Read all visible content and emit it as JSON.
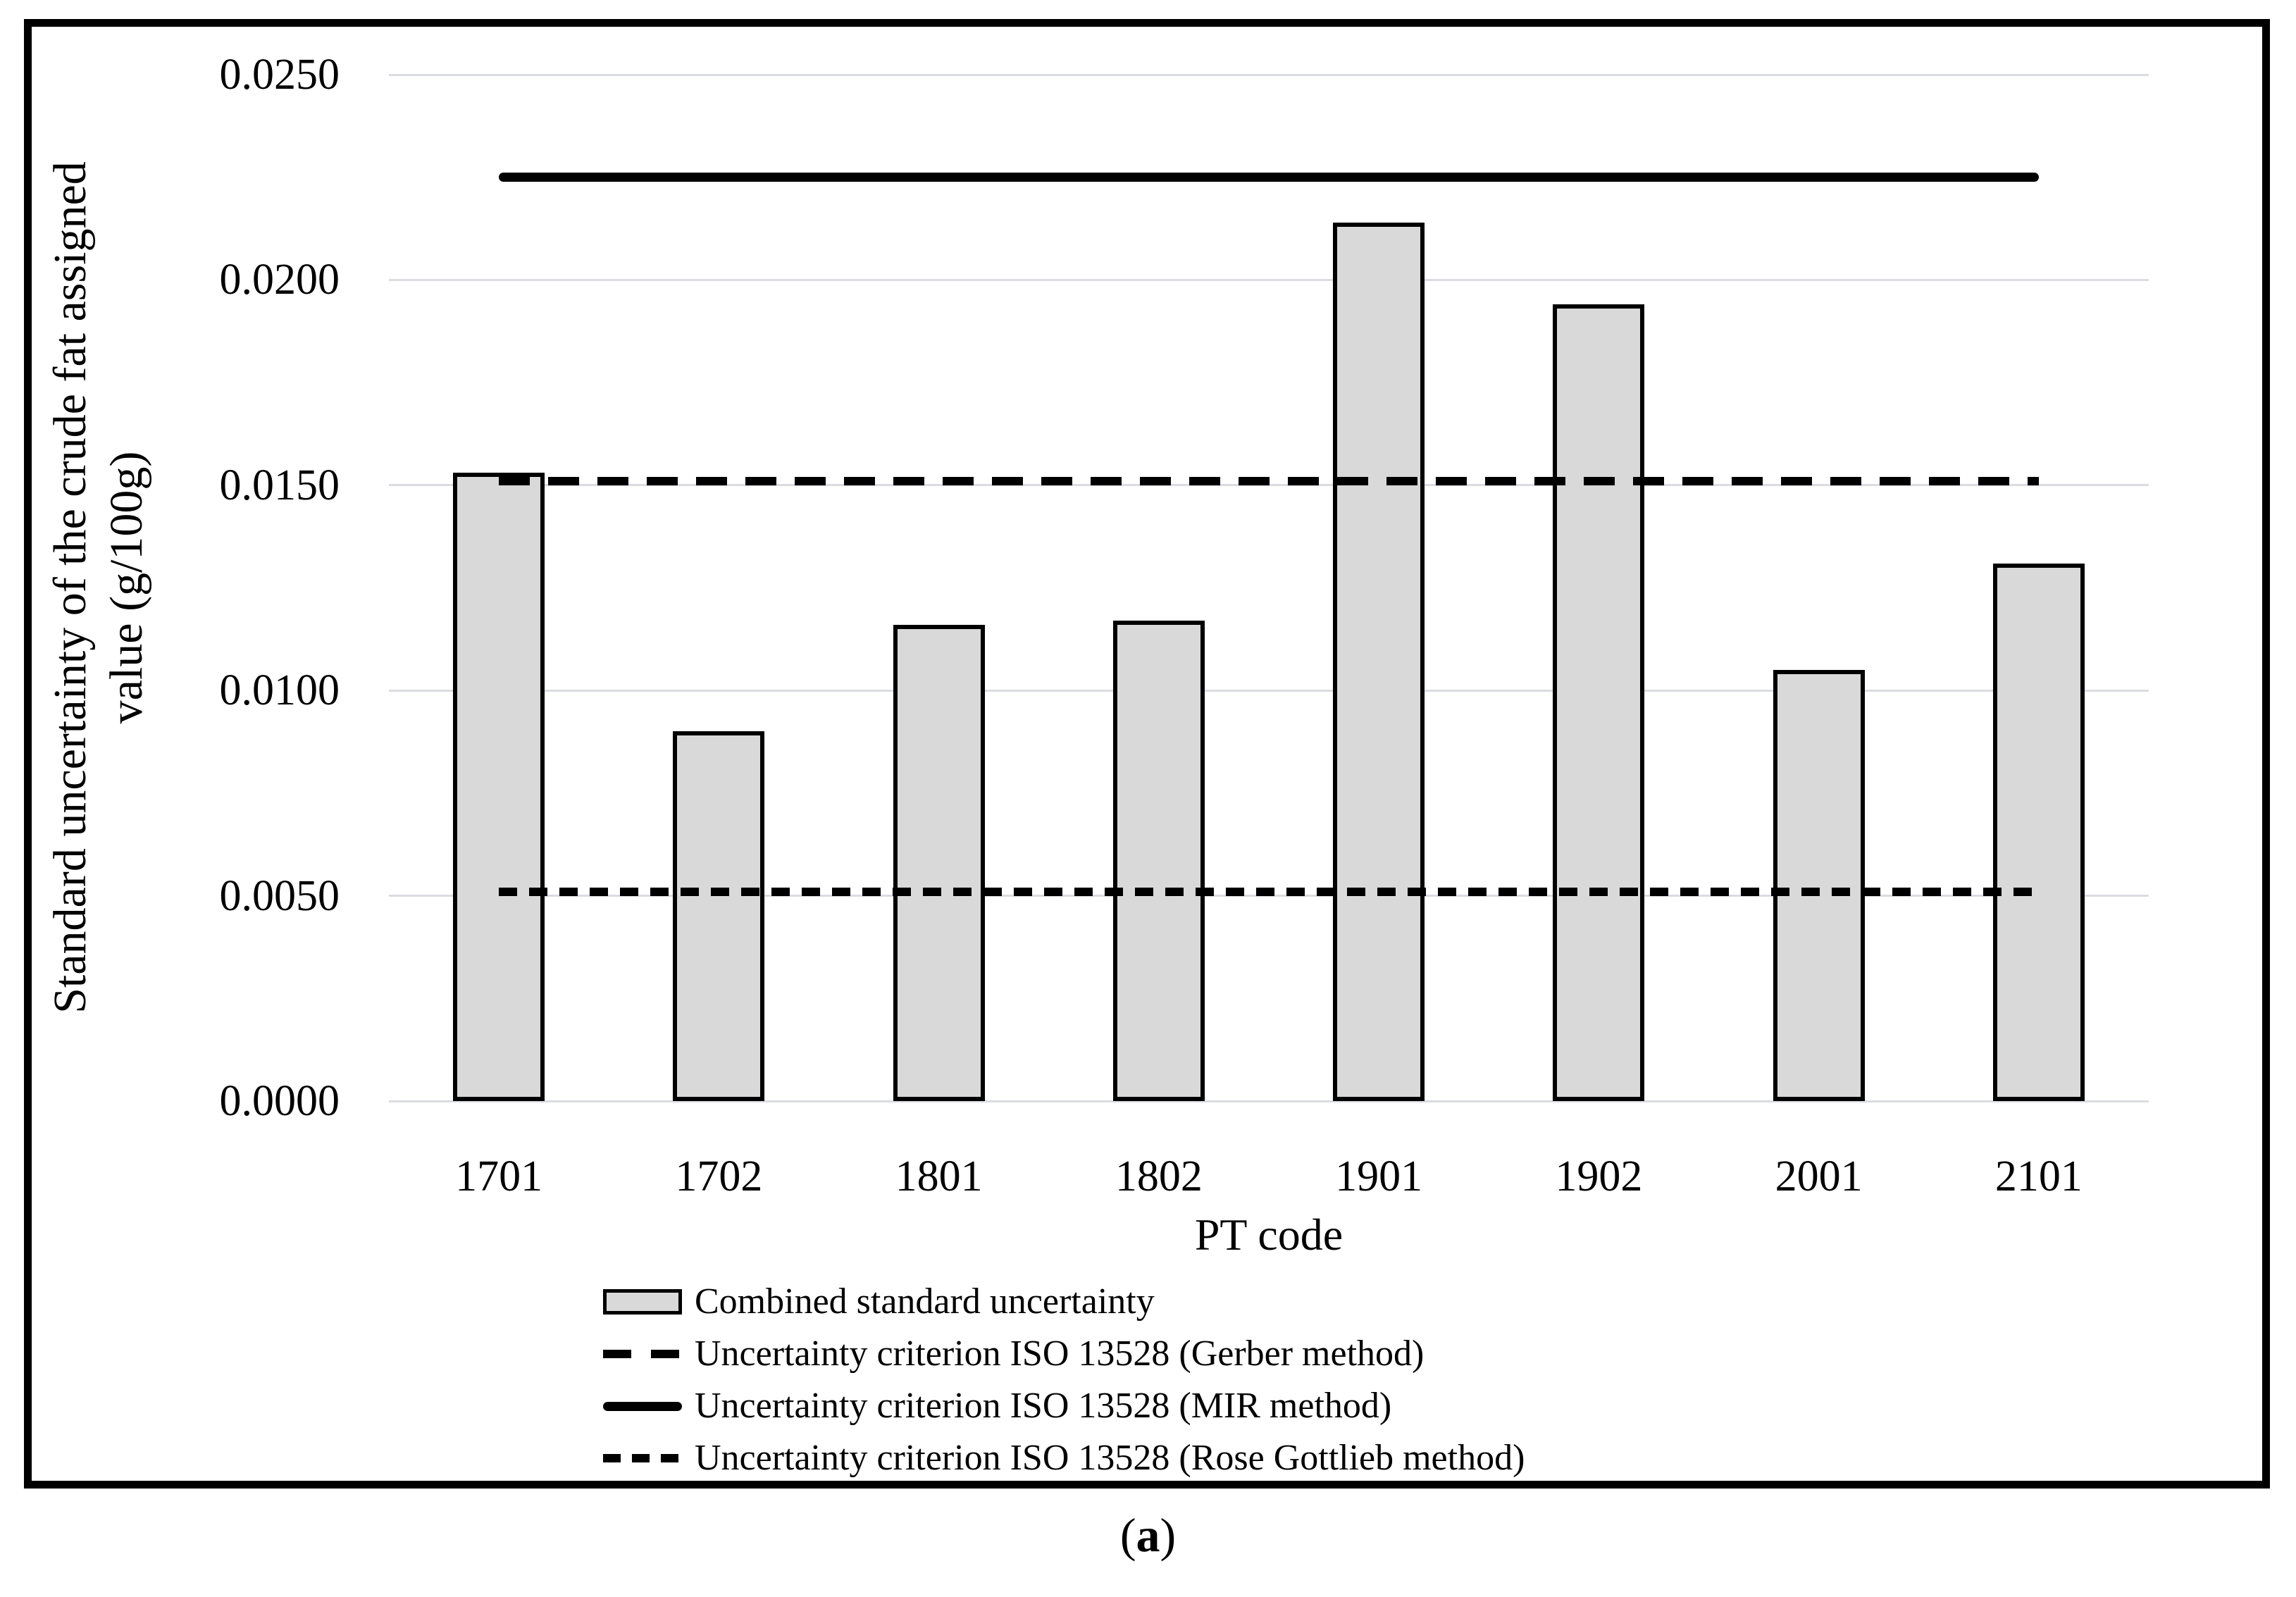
{
  "figure": {
    "caption": {
      "open": "(",
      "letter": "a",
      "close": ")"
    }
  },
  "chart_data": {
    "type": "bar",
    "title": "",
    "xlabel": "PT code",
    "ylabel_lines": [
      "Standard uncertainty of the crude fat assigned",
      "value (g/100g)"
    ],
    "categories": [
      "1701",
      "1702",
      "1801",
      "1802",
      "1901",
      "1902",
      "2001",
      "2101"
    ],
    "series": [
      {
        "name": "Combined standard uncertainty",
        "values": [
          0.0153,
          0.009,
          0.0116,
          0.0117,
          0.0214,
          0.0194,
          0.0105,
          0.0131
        ],
        "fill": "#d9d9d9",
        "border": "#000000"
      }
    ],
    "ref_lines": [
      {
        "name": "Uncertainty criterion ISO 13528 (Gerber method)",
        "value": 0.0151,
        "style": "dashed"
      },
      {
        "name": "Uncertainty criterion ISO 13528 (MIR method)",
        "value": 0.0225,
        "style": "solid"
      },
      {
        "name": "Uncertainty criterion ISO 13528 (Rose Gottlieb method)",
        "value": 0.0051,
        "style": "dotted"
      }
    ],
    "ylim": [
      0,
      0.025
    ],
    "ytick_labels": [
      "0.0000",
      "0.0050",
      "0.0100",
      "0.0150",
      "0.0200",
      "0.0250"
    ],
    "grid": true,
    "legend_position": "bottom-left",
    "colors": {
      "background": "#ffffff",
      "grid": "#dadce2",
      "text": "#000000",
      "bar_fill": "#d9d9d9",
      "line": "#000000"
    }
  }
}
